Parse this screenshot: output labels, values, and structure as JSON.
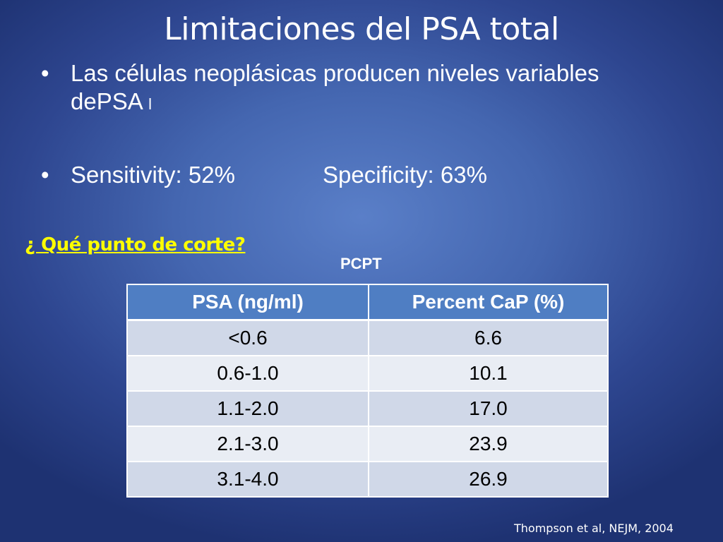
{
  "slide": {
    "title": "Limitaciones del PSA total",
    "bullets": [
      {
        "marker": "•",
        "text": "Las células neoplásicas producen niveles variables dePSA",
        "suffix": "l"
      },
      {
        "marker": "•",
        "sensitivity": "Sensitivity: 52%",
        "specificity": "Specificity:  63%"
      }
    ],
    "question": "¿ Qué punto de corte?",
    "table_title": "PCPT",
    "table": {
      "headers": [
        "PSA (ng/ml)",
        "Percent  CaP  (%)"
      ],
      "rows": [
        [
          "<0.6",
          "6.6"
        ],
        [
          "0.6-1.0",
          "10.1"
        ],
        [
          "1.1-2.0",
          "17.0"
        ],
        [
          "2.1-3.0",
          "23.9"
        ],
        [
          "3.1-4.0",
          "26.9"
        ]
      ]
    },
    "citation": "Thompson et al, NEJM, 2004",
    "colors": {
      "background": "#4466b0",
      "header_fill": "#4f7ec3",
      "row_odd": "#d0d8e8",
      "row_even": "#e9edf4",
      "question_text": "#ffff00"
    }
  }
}
